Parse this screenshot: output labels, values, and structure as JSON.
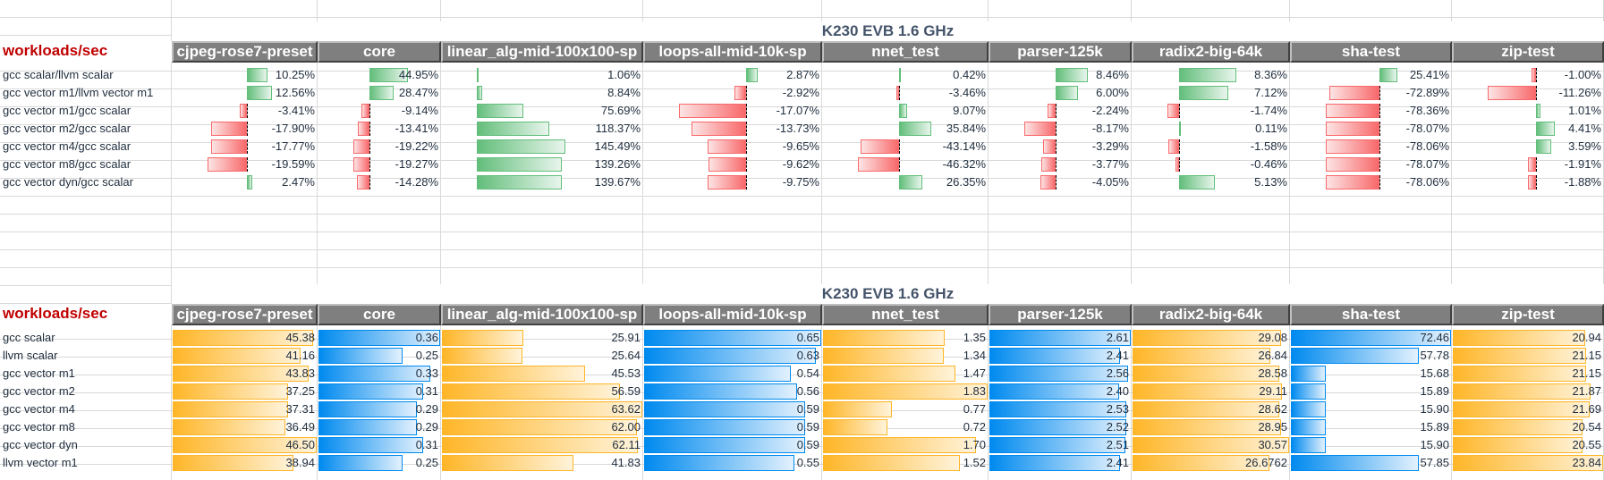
{
  "colors": {
    "positive_bar": "#63be7b",
    "negative_bar": "#f8696b",
    "orange_bar": "#ffb628",
    "blue_bar": "#008aef",
    "header_bg": "#7f7f7f",
    "workloads_label": "#c00000",
    "title": "#44546a"
  },
  "columns": [
    "cjpeg-rose7-preset",
    "core",
    "linear_alg-mid-100x100-sp",
    "loops-all-mid-10k-sp",
    "nnet_test",
    "parser-125k",
    "radix2-big-64k",
    "sha-test",
    "zip-test"
  ],
  "table1": {
    "title": "K230 EVB 1.6 GHz",
    "corner_label": "workloads/sec",
    "bar_style": "diverging",
    "rows": [
      {
        "label": "gcc scalar/llvm scalar",
        "values": [
          10.25,
          44.95,
          1.06,
          2.87,
          0.42,
          8.46,
          8.36,
          25.41,
          -1.0
        ],
        "display": [
          "10.25%",
          "44.95%",
          "1.06%",
          "2.87%",
          "0.42%",
          "8.46%",
          "8.36%",
          "25.41%",
          "-1.00%"
        ]
      },
      {
        "label": "gcc vector m1/llvm vector m1",
        "values": [
          12.56,
          28.47,
          8.84,
          -2.92,
          -3.46,
          6.0,
          7.12,
          -72.89,
          -11.26
        ],
        "display": [
          "12.56%",
          "28.47%",
          "8.84%",
          "-2.92%",
          "-3.46%",
          "6.00%",
          "7.12%",
          "-72.89%",
          "-11.26%"
        ]
      },
      {
        "label": "gcc vector m1/gcc scalar",
        "values": [
          -3.41,
          -9.14,
          75.69,
          -17.07,
          9.07,
          -2.24,
          -1.74,
          -78.36,
          1.01
        ],
        "display": [
          "-3.41%",
          "-9.14%",
          "75.69%",
          "-17.07%",
          "9.07%",
          "-2.24%",
          "-1.74%",
          "-78.36%",
          "1.01%"
        ]
      },
      {
        "label": "gcc vector m2/gcc scalar",
        "values": [
          -17.9,
          -13.41,
          118.37,
          -13.73,
          35.84,
          -8.17,
          0.11,
          -78.07,
          4.41
        ],
        "display": [
          "-17.90%",
          "-13.41%",
          "118.37%",
          "-13.73%",
          "35.84%",
          "-8.17%",
          "0.11%",
          "-78.07%",
          "4.41%"
        ]
      },
      {
        "label": "gcc vector m4/gcc scalar",
        "values": [
          -17.77,
          -19.22,
          145.49,
          -9.65,
          -43.14,
          -3.29,
          -1.58,
          -78.06,
          3.59
        ],
        "display": [
          "-17.77%",
          "-19.22%",
          "145.49%",
          "-9.65%",
          "-43.14%",
          "-3.29%",
          "-1.58%",
          "-78.06%",
          "3.59%"
        ]
      },
      {
        "label": "gcc vector m8/gcc scalar",
        "values": [
          -19.59,
          -19.27,
          139.26,
          -9.62,
          -46.32,
          -3.77,
          -0.46,
          -78.07,
          -1.91
        ],
        "display": [
          "-19.59%",
          "-19.27%",
          "139.26%",
          "-9.62%",
          "-46.32%",
          "-3.77%",
          "-0.46%",
          "-78.07%",
          "-1.91%"
        ]
      },
      {
        "label": "gcc vector dyn/gcc scalar",
        "values": [
          2.47,
          -14.28,
          139.67,
          -9.75,
          26.35,
          -4.05,
          5.13,
          -78.06,
          -1.88
        ],
        "display": [
          "2.47%",
          "-14.28%",
          "139.67%",
          "-9.75%",
          "26.35%",
          "-4.05%",
          "5.13%",
          "-78.06%",
          "-1.88%"
        ]
      }
    ]
  },
  "table2": {
    "title": "K230 EVB 1.6 GHz",
    "corner_label": "workloads/sec",
    "bar_style": "solid",
    "column_bar_colors": [
      "orange",
      "blue",
      "orange",
      "blue",
      "orange",
      "blue",
      "orange",
      "blue",
      "orange"
    ],
    "rows": [
      {
        "label": "gcc scalar",
        "values": [
          45.38,
          0.36,
          25.91,
          0.65,
          1.35,
          2.61,
          29.08,
          72.46,
          20.94
        ],
        "display": [
          "45.38",
          "0.36",
          "25.91",
          "0.65",
          "1.35",
          "2.61",
          "29.08",
          "72.46",
          "20.94"
        ]
      },
      {
        "label": "llvm scalar",
        "values": [
          41.16,
          0.25,
          25.64,
          0.63,
          1.34,
          2.41,
          26.84,
          57.78,
          21.15
        ],
        "display": [
          "41.16",
          "0.25",
          "25.64",
          "0.63",
          "1.34",
          "2.41",
          "26.84",
          "57.78",
          "21.15"
        ]
      },
      {
        "label": "gcc vector m1",
        "values": [
          43.83,
          0.33,
          45.53,
          0.54,
          1.47,
          2.56,
          28.58,
          15.68,
          21.15
        ],
        "display": [
          "43.83",
          "0.33",
          "45.53",
          "0.54",
          "1.47",
          "2.56",
          "28.58",
          "15.68",
          "21.15"
        ]
      },
      {
        "label": "gcc vector m2",
        "values": [
          37.25,
          0.31,
          56.59,
          0.56,
          1.83,
          2.4,
          29.11,
          15.89,
          21.87
        ],
        "display": [
          "37.25",
          "0.31",
          "56.59",
          "0.56",
          "1.83",
          "2.40",
          "29.11",
          "15.89",
          "21.87"
        ]
      },
      {
        "label": "gcc vector m4",
        "values": [
          37.31,
          0.29,
          63.62,
          0.59,
          0.77,
          2.53,
          28.62,
          15.9,
          21.69
        ],
        "display": [
          "37.31",
          "0.29",
          "63.62",
          "0.59",
          "0.77",
          "2.53",
          "28.62",
          "15.90",
          "21.69"
        ]
      },
      {
        "label": "gcc vector m8",
        "values": [
          36.49,
          0.29,
          62.0,
          0.59,
          0.72,
          2.52,
          28.95,
          15.89,
          20.54
        ],
        "display": [
          "36.49",
          "0.29",
          "62.00",
          "0.59",
          "0.72",
          "2.52",
          "28.95",
          "15.89",
          "20.54"
        ]
      },
      {
        "label": "gcc vector dyn",
        "values": [
          46.5,
          0.31,
          62.11,
          0.59,
          1.7,
          2.51,
          30.57,
          15.9,
          20.55
        ],
        "display": [
          "46.50",
          "0.31",
          "62.11",
          "0.59",
          "1.70",
          "2.51",
          "30.57",
          "15.90",
          "20.55"
        ]
      },
      {
        "label": "llvm vector m1",
        "values": [
          38.94,
          0.25,
          41.83,
          0.55,
          1.52,
          2.41,
          26.6762,
          57.85,
          23.84
        ],
        "display": [
          "38.94",
          "0.25",
          "41.83",
          "0.55",
          "1.52",
          "2.41",
          "26.6762",
          "57.85",
          "23.84"
        ]
      }
    ]
  }
}
